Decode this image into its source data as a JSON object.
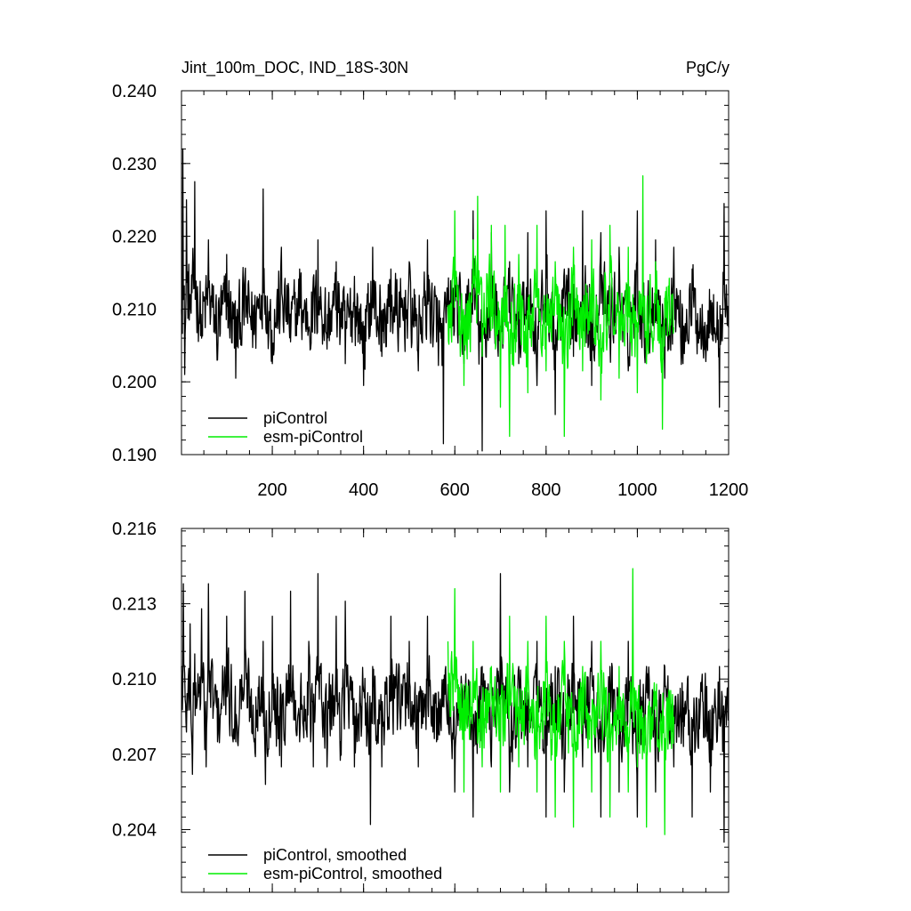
{
  "chart_data": [
    {
      "type": "line",
      "title": "Jint_100m_DOC, IND_18S-30N",
      "units": "PgC/y",
      "xlim": [
        1,
        1200
      ],
      "ylim": [
        0.19,
        0.24
      ],
      "xticks": [
        200,
        400,
        600,
        800,
        1000,
        1200
      ],
      "xtick_labels": [
        "200",
        "400",
        "600",
        "800",
        "1000",
        "1200"
      ],
      "yticks": [
        0.19,
        0.2,
        0.21,
        0.22,
        0.23,
        0.24
      ],
      "ytick_labels": [
        "0.190",
        "0.200",
        "0.210",
        "0.220",
        "0.230",
        "0.240"
      ],
      "legend_position": "bottom-left",
      "series": [
        {
          "name": "piControl",
          "color": "#000000",
          "x_range": [
            1,
            1200
          ],
          "x": [
            1,
            4,
            8,
            12,
            20,
            30,
            45,
            60,
            80,
            100,
            120,
            140,
            160,
            180,
            200,
            220,
            240,
            260,
            280,
            300,
            320,
            340,
            360,
            380,
            400,
            420,
            440,
            460,
            480,
            500,
            520,
            540,
            560,
            575,
            580,
            600,
            620,
            640,
            660,
            680,
            700,
            720,
            740,
            760,
            780,
            800,
            820,
            840,
            860,
            880,
            900,
            920,
            940,
            960,
            980,
            1000,
            1020,
            1040,
            1060,
            1080,
            1100,
            1120,
            1140,
            1160,
            1180,
            1190,
            1200
          ],
          "y": [
            0.21,
            0.232,
            0.201,
            0.225,
            0.212,
            0.2275,
            0.206,
            0.2195,
            0.203,
            0.2175,
            0.2005,
            0.2145,
            0.2065,
            0.2265,
            0.2025,
            0.2185,
            0.2055,
            0.2155,
            0.207,
            0.2195,
            0.2045,
            0.2165,
            0.2025,
            0.2145,
            0.1995,
            0.2185,
            0.2035,
            0.2155,
            0.2075,
            0.2165,
            0.2015,
            0.2195,
            0.2055,
            0.1915,
            0.2095,
            0.2155,
            0.2025,
            0.2235,
            0.1905,
            0.2205,
            0.2035,
            0.2165,
            0.2025,
            0.2205,
            0.1995,
            0.2235,
            0.1955,
            0.2155,
            0.2035,
            0.2235,
            0.1995,
            0.2205,
            0.2065,
            0.2185,
            0.2015,
            0.2235,
            0.2035,
            0.2195,
            0.2005,
            0.2185,
            0.2025,
            0.2155,
            0.2045,
            0.2105,
            0.1965,
            0.2245,
            0.2075
          ]
        },
        {
          "name": "esm-piControl",
          "color": "#00ee00",
          "x_range": [
            585,
            1080
          ],
          "x": [
            585,
            600,
            620,
            640,
            650,
            660,
            680,
            700,
            710,
            720,
            740,
            760,
            780,
            800,
            820,
            840,
            860,
            880,
            900,
            920,
            940,
            960,
            980,
            1000,
            1012,
            1020,
            1040,
            1055,
            1060,
            1080
          ],
          "y": [
            0.2105,
            0.2235,
            0.1995,
            0.2195,
            0.2255,
            0.2035,
            0.2215,
            0.1965,
            0.2215,
            0.1925,
            0.2175,
            0.1985,
            0.2215,
            0.2015,
            0.2165,
            0.1925,
            0.2185,
            0.2015,
            0.2195,
            0.1975,
            0.2215,
            0.2005,
            0.2185,
            0.1985,
            0.2283,
            0.2025,
            0.2165,
            0.1935,
            0.2115,
            0.2075
          ]
        }
      ]
    },
    {
      "type": "line",
      "xlim": [
        1,
        1200
      ],
      "ylim": [
        0.2015,
        0.216
      ],
      "yticks": [
        0.204,
        0.207,
        0.21,
        0.213,
        0.216
      ],
      "ytick_labels": [
        "0.204",
        "0.207",
        "0.210",
        "0.213",
        "0.216"
      ],
      "legend_position": "bottom-left",
      "series": [
        {
          "name": "piControl, smoothed",
          "color": "#000000",
          "x_range": [
            1,
            1200
          ],
          "x": [
            1,
            5,
            10,
            20,
            25,
            30,
            45,
            55,
            60,
            80,
            100,
            120,
            140,
            160,
            180,
            185,
            200,
            220,
            240,
            260,
            280,
            290,
            300,
            320,
            340,
            350,
            360,
            380,
            400,
            415,
            420,
            440,
            460,
            480,
            500,
            520,
            540,
            560,
            580,
            600,
            620,
            640,
            660,
            680,
            700,
            720,
            740,
            760,
            780,
            800,
            820,
            840,
            860,
            880,
            900,
            920,
            940,
            960,
            980,
            1000,
            1020,
            1040,
            1060,
            1080,
            1100,
            1120,
            1140,
            1160,
            1180,
            1190,
            1200
          ],
          "y": [
            0.2105,
            0.2138,
            0.209,
            0.2122,
            0.2062,
            0.211,
            0.2128,
            0.2065,
            0.2138,
            0.2075,
            0.2125,
            0.2075,
            0.2135,
            0.2075,
            0.2115,
            0.2058,
            0.2125,
            0.2065,
            0.2135,
            0.2075,
            0.2115,
            0.2065,
            0.2142,
            0.2065,
            0.2125,
            0.2075,
            0.2131,
            0.2065,
            0.2095,
            0.2042,
            0.2105,
            0.2065,
            0.2125,
            0.2085,
            0.2115,
            0.2065,
            0.2125,
            0.2075,
            0.2105,
            0.2055,
            0.2095,
            0.2045,
            0.2105,
            0.2065,
            0.2142,
            0.2055,
            0.2105,
            0.2065,
            0.2115,
            0.2045,
            0.2105,
            0.2055,
            0.2125,
            0.2065,
            0.2115,
            0.2045,
            0.2105,
            0.2055,
            0.2115,
            0.2045,
            0.2105,
            0.2055,
            0.2105,
            0.2065,
            0.2095,
            0.2045,
            0.2095,
            0.2055,
            0.2105,
            0.2035,
            0.2112
          ]
        },
        {
          "name": "esm-piControl, smoothed",
          "color": "#00ee00",
          "x_range": [
            585,
            1080
          ],
          "x": [
            585,
            600,
            620,
            640,
            660,
            680,
            700,
            720,
            740,
            760,
            780,
            800,
            820,
            840,
            860,
            880,
            900,
            920,
            940,
            960,
            980,
            990,
            1000,
            1020,
            1040,
            1060,
            1080
          ],
          "y": [
            0.2115,
            0.2136,
            0.2055,
            0.2115,
            0.2065,
            0.2105,
            0.2055,
            0.2125,
            0.2065,
            0.2115,
            0.2055,
            0.2125,
            0.2045,
            0.2115,
            0.2041,
            0.2105,
            0.2055,
            0.2115,
            0.2045,
            0.2105,
            0.2055,
            0.2144,
            0.2065,
            0.2041,
            0.2095,
            0.2038,
            0.2085
          ]
        }
      ]
    }
  ]
}
